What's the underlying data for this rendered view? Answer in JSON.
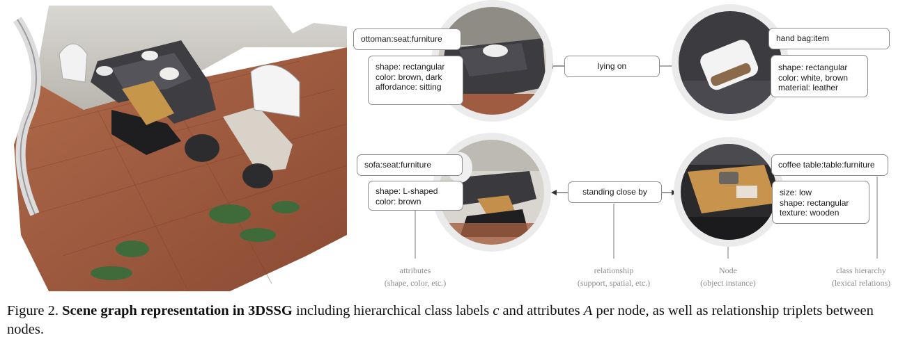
{
  "nodes": {
    "ottoman": {
      "label": "ottoman:seat:furniture",
      "attributes": [
        "shape: rectangular",
        "color: brown, dark",
        "affordance: sitting"
      ]
    },
    "handbag": {
      "label": "hand bag:item",
      "attributes": [
        "shape: rectangular",
        "color: white, brown",
        "material: leather"
      ]
    },
    "sofa": {
      "label": "sofa:seat:furniture",
      "attributes": [
        "shape: L-shaped",
        "color: brown"
      ]
    },
    "coffee_table": {
      "label": "coffee table:table:furniture",
      "attributes": [
        "size: low",
        "shape: rectangular",
        "texture: wooden"
      ]
    }
  },
  "relationships": {
    "top": "lying on",
    "bottom": "standing close by"
  },
  "legend": {
    "attributes": {
      "title": "attributes",
      "subtitle": "(shape, color, etc.)"
    },
    "relationship": {
      "title": "relationship",
      "subtitle": "(support, spatial, etc.)"
    },
    "node": {
      "title": "Node",
      "subtitle": "(object instance)"
    },
    "class_hierarchy": {
      "title": "class hierarchy",
      "subtitle": "(lexical relations)"
    }
  },
  "caption": {
    "prefix": "Figure 2. ",
    "bold": "Scene graph representation in 3DSSG",
    "part1": " including hierarchical class labels ",
    "var_c": "c",
    "part2": " and attributes ",
    "var_a": "A",
    "part3": " per node, as well as relationship triplets between nodes."
  }
}
